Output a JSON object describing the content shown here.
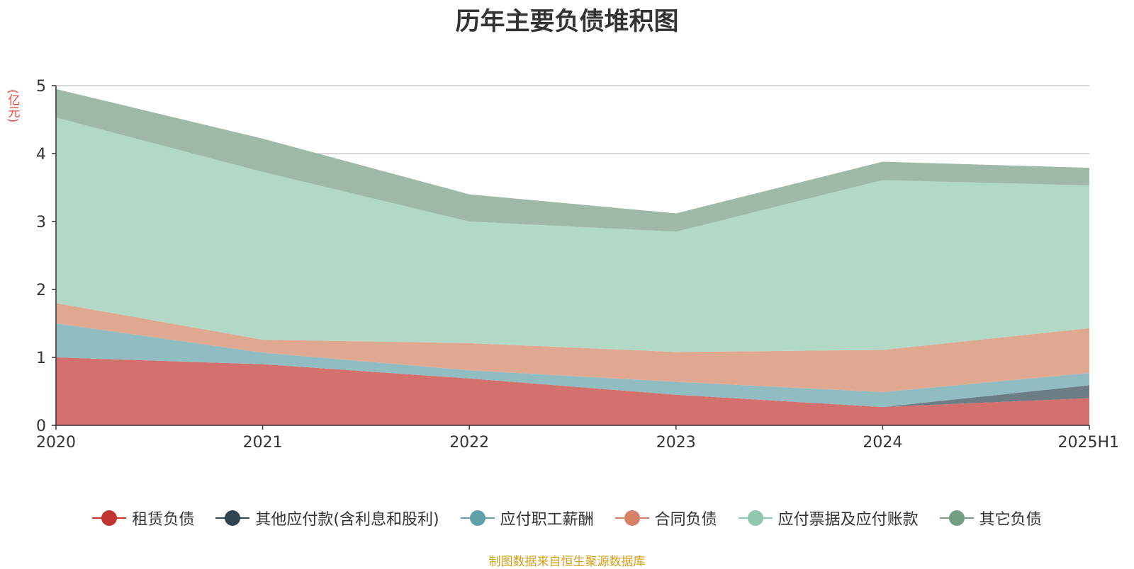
{
  "title": "历年主要负债堆积图",
  "unit_label": "(亿元)",
  "source_note": "制图数据来自恒生聚源数据库",
  "chart_data": {
    "type": "area",
    "stacked": true,
    "x": [
      "2020",
      "2021",
      "2022",
      "2023",
      "2024",
      "2025H1"
    ],
    "y_ticks": [
      "0",
      "1",
      "2",
      "3",
      "4",
      "5"
    ],
    "ylim": [
      0,
      5
    ],
    "grid": true,
    "legend_position": "bottom",
    "series": [
      {
        "name": "租赁负债",
        "color": "#c23531",
        "fill": "#d4706d",
        "values": [
          1.0,
          0.9,
          0.69,
          0.45,
          0.27,
          0.4
        ]
      },
      {
        "name": "其他应付款(含利息和股利)",
        "color": "#2f4554",
        "fill": "#6d7d86",
        "values": [
          0.0,
          0.0,
          0.0,
          0.0,
          0.0,
          0.19
        ]
      },
      {
        "name": "应付职工薪酬",
        "color": "#61a0a8",
        "fill": "#90bcc2",
        "values": [
          0.5,
          0.17,
          0.12,
          0.19,
          0.22,
          0.18
        ]
      },
      {
        "name": "合同负债",
        "color": "#d48265",
        "fill": "#e0a891",
        "values": [
          0.3,
          0.19,
          0.4,
          0.44,
          0.62,
          0.66
        ]
      },
      {
        "name": "应付票据及应付账款",
        "color": "#91c7ae",
        "fill": "#b2d8c6",
        "values": [
          2.73,
          2.47,
          1.79,
          1.77,
          2.5,
          2.1
        ]
      },
      {
        "name": "其它负债",
        "color": "#749f83",
        "fill": "#9eb9a7",
        "values": [
          0.42,
          0.49,
          0.4,
          0.27,
          0.27,
          0.26
        ]
      }
    ]
  }
}
